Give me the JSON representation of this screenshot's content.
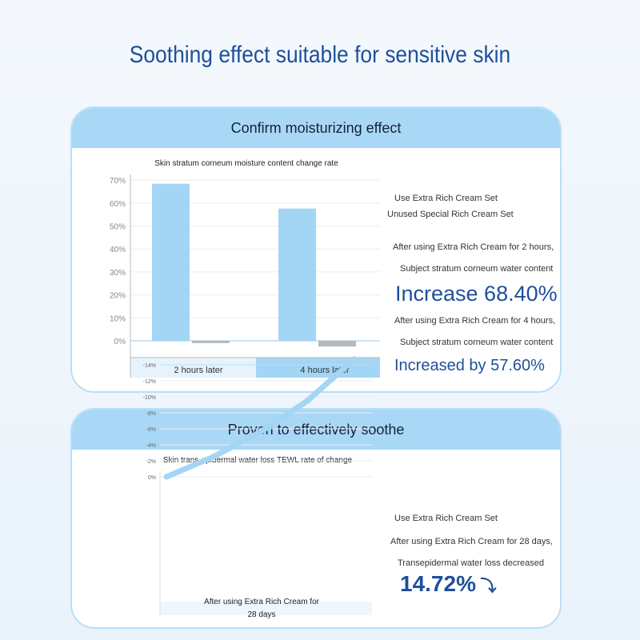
{
  "page_title": "Soothing effect suitable for sensitive skin",
  "section1": {
    "header": "Confirm moisturizing effect",
    "legend": [
      "Use Extra Rich Cream Set",
      "Unused Special Rich Cream Set"
    ],
    "note1a": "After using Extra Rich Cream for 2 hours,",
    "note1b": "Subject stratum corneum water content",
    "stat1": "Increase 68.40%",
    "note2a": "After using Extra Rich Cream for 4 hours,",
    "note2b": "Subject stratum corneum water content",
    "stat2": "Increased by 57.60%"
  },
  "section2": {
    "header": "Proven to effectively soothe",
    "legend": "Use Extra Rich Cream Set",
    "note1": "After using Extra Rich Cream for 28 days,",
    "note2": "Transepidermal water loss decreased",
    "stat": "14.72%",
    "arrow_icon": "arrow-down"
  },
  "colors": {
    "accent": "#1f4f9c",
    "bar": "#a3d5f5",
    "gray": "#b8b8b8"
  },
  "chart_data": [
    {
      "type": "bar",
      "title": "Skin stratum corneum moisture content change rate",
      "categories": [
        "2 hours later",
        "4 hours later"
      ],
      "series": [
        {
          "name": "Use Extra Rich Cream Set",
          "values": [
            68.4,
            57.6
          ]
        },
        {
          "name": "Unused Special Rich Cream Set",
          "values": [
            -1,
            -2.5
          ]
        }
      ],
      "yticks": [
        "70%",
        "60%",
        "50%",
        "40%",
        "30%",
        "20%",
        "10%",
        "0%"
      ],
      "ylim": [
        -3,
        70
      ],
      "grid": true
    },
    {
      "type": "line",
      "title": "Skin trans-epidermal water loss TEWL rate of change",
      "xlabel": "After using Extra Rich Cream for 28 days",
      "x": [
        0,
        7,
        14,
        21,
        28
      ],
      "y": [
        0,
        -2.5,
        -5.6,
        -9.5,
        -14.72
      ],
      "yticks": [
        "0%",
        "-2%",
        "-4%",
        "-6%",
        "-8%",
        "-10%",
        "-12%",
        "-14%"
      ],
      "ylim": [
        -14,
        0
      ],
      "grid": true
    }
  ]
}
